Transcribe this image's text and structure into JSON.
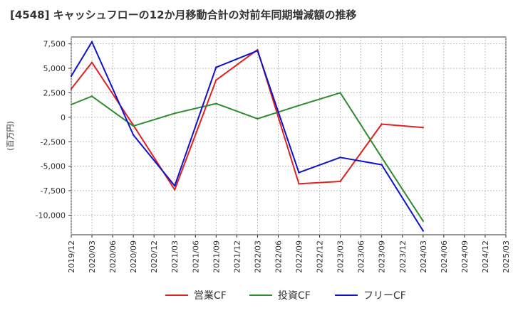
{
  "chart_data": {
    "type": "line",
    "title": "[4548]  キャッシュフローの12か月移動合計の対前年同期増減額の推移",
    "xlabel": "",
    "ylabel": "(百万円)",
    "ylim": [
      -12000,
      8200
    ],
    "yticks": [
      7500,
      5000,
      2500,
      0,
      -2500,
      -5000,
      -7500,
      -10000
    ],
    "ytick_labels": [
      "7,500",
      "5,000",
      "2,500",
      "0",
      "-2,500",
      "-5,000",
      "-7,500",
      "-10,000"
    ],
    "grid": true,
    "legend_position": "bottom",
    "categories": [
      "2019/12",
      "2020/03",
      "2020/06",
      "2020/09",
      "2020/12",
      "2021/03",
      "2021/06",
      "2021/09",
      "2021/12",
      "2022/03",
      "2022/06",
      "2022/09",
      "2022/12",
      "2023/03",
      "2023/06",
      "2023/09",
      "2023/12",
      "2024/03",
      "2024/06",
      "2024/09",
      "2024/12",
      "2025/03"
    ],
    "series": [
      {
        "name": "営業CF",
        "color": "#dd2222",
        "values": [
          2900,
          5600,
          null,
          -800,
          null,
          -7400,
          null,
          3800,
          null,
          6900,
          null,
          -6800,
          null,
          -6550,
          null,
          -700,
          null,
          -1050,
          null,
          null,
          null,
          null
        ]
      },
      {
        "name": "投資CF",
        "color": "#2e8b2e",
        "values": [
          1300,
          2150,
          null,
          -900,
          null,
          400,
          null,
          1400,
          null,
          -150,
          null,
          1200,
          null,
          2500,
          null,
          -4100,
          null,
          -10600,
          null,
          null,
          null,
          null
        ]
      },
      {
        "name": "フリーCF",
        "color": "#1111cc",
        "values": [
          4200,
          7700,
          null,
          -1800,
          null,
          -7000,
          null,
          5100,
          null,
          6800,
          null,
          -5650,
          null,
          -4100,
          null,
          -4850,
          null,
          -11600,
          null,
          null,
          null,
          null
        ]
      }
    ]
  }
}
